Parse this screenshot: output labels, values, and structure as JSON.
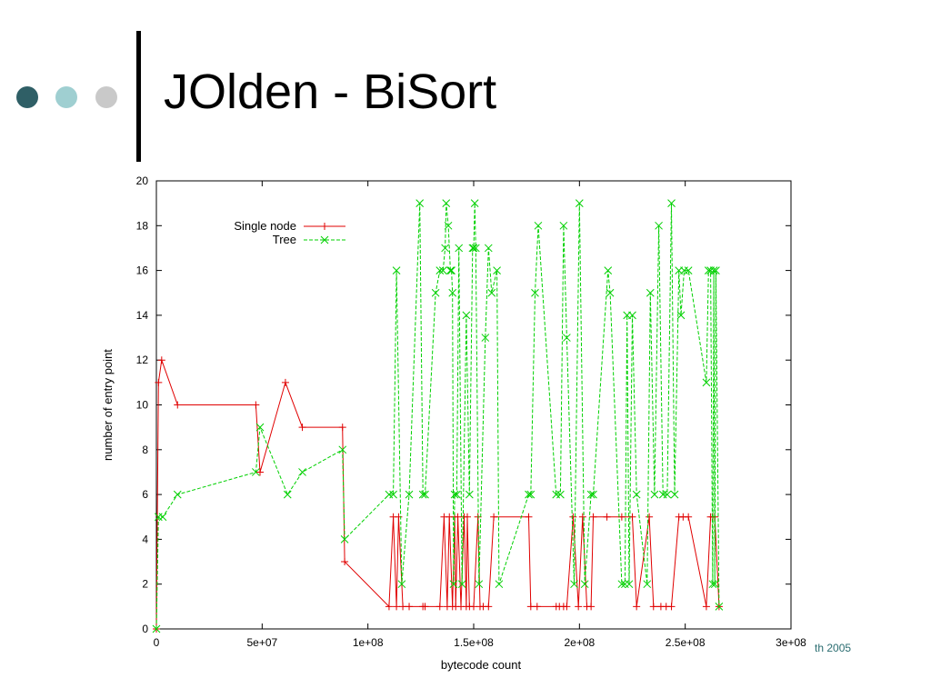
{
  "slide": {
    "title": "JOlden - BiSort",
    "footer": "th 2005",
    "bullet_colors": [
      "#2f5f66",
      "#9fcfd1",
      "#c9c9c9"
    ]
  },
  "chart_data": {
    "type": "line",
    "title": "",
    "xlabel": "bytecode count",
    "ylabel": "number of entry point",
    "xlim": [
      0,
      300000000
    ],
    "ylim": [
      0,
      20
    ],
    "x_ticks": [
      0,
      50000000,
      100000000,
      150000000,
      200000000,
      250000000,
      300000000
    ],
    "x_tick_labels": [
      "0",
      "5e+07",
      "1e+08",
      "1.5e+08",
      "2e+08",
      "2.5e+08",
      "3e+08"
    ],
    "y_ticks": [
      0,
      2,
      4,
      6,
      8,
      10,
      12,
      14,
      16,
      18,
      20
    ],
    "y_tick_labels": [
      "0",
      "2",
      "4",
      "6",
      "8",
      "10",
      "12",
      "14",
      "16",
      "18",
      "20"
    ],
    "grid": false,
    "legend_position": "top-left",
    "series": [
      {
        "name": "Single node",
        "color": "#e00000",
        "marker": "plus",
        "dash": "solid",
        "x": [
          0,
          1000000,
          2500000,
          10000000,
          47000000,
          49000000,
          61000000,
          69000000,
          88000000,
          89000000,
          110000000,
          112000000,
          113500000,
          114500000,
          116500000,
          119500000,
          126000000,
          127000000,
          134000000,
          136000000,
          137500000,
          138500000,
          140000000,
          141000000,
          141500000,
          142500000,
          144000000,
          145500000,
          146500000,
          147000000,
          148000000,
          150000000,
          152000000,
          153000000,
          154500000,
          157000000,
          159500000,
          176000000,
          177000000,
          180000000,
          189000000,
          190500000,
          192500000,
          194000000,
          197000000,
          199500000,
          201500000,
          203500000,
          205500000,
          206500000,
          213000000,
          220000000,
          225000000,
          227000000,
          233000000,
          235000000,
          238500000,
          241000000,
          243500000,
          247000000,
          249000000,
          251500000,
          260000000,
          262000000,
          263000000,
          264000000,
          266000000
        ],
        "y": [
          0,
          11,
          12,
          10,
          10,
          7,
          11,
          9,
          9,
          3,
          1,
          5,
          1,
          5,
          1,
          1,
          1,
          1,
          1,
          5,
          1,
          5,
          1,
          5,
          1,
          5,
          1,
          5,
          1,
          5,
          1,
          1,
          5,
          1,
          1,
          1,
          5,
          5,
          1,
          1,
          1,
          1,
          1,
          1,
          5,
          1,
          5,
          1,
          1,
          5,
          5,
          5,
          5,
          1,
          5,
          1,
          1,
          1,
          1,
          5,
          5,
          5,
          1,
          5,
          5,
          5,
          1
        ]
      },
      {
        "name": "Tree",
        "color": "#00d000",
        "marker": "cross",
        "dash": "dashed",
        "x": [
          0,
          1000000,
          3000000,
          10000000,
          47000000,
          49000000,
          62000000,
          69000000,
          88000000,
          89000000,
          110000000,
          112000000,
          113500000,
          116000000,
          119500000,
          124500000,
          126000000,
          127000000,
          132000000,
          134000000,
          135500000,
          136500000,
          137000000,
          138000000,
          139000000,
          139500000,
          140000000,
          140500000,
          141000000,
          142000000,
          143000000,
          144500000,
          146500000,
          148000000,
          149500000,
          150000000,
          150500000,
          151000000,
          152500000,
          155500000,
          157000000,
          158500000,
          161000000,
          162000000,
          176000000,
          177000000,
          179000000,
          180500000,
          189000000,
          191000000,
          192500000,
          194000000,
          197500000,
          200000000,
          202500000,
          205500000,
          206500000,
          213500000,
          214500000,
          220000000,
          221500000,
          222500000,
          223500000,
          225000000,
          227000000,
          232000000,
          233500000,
          235500000,
          237500000,
          239500000,
          241500000,
          243500000,
          245000000,
          247000000,
          248000000,
          249500000,
          251500000,
          260000000,
          261000000,
          262000000,
          263000000,
          263500000,
          264000000,
          264500000,
          266000000
        ],
        "y": [
          0,
          5,
          5,
          6,
          7,
          9,
          6,
          7,
          8,
          4,
          6,
          6,
          16,
          2,
          6,
          19,
          6,
          6,
          15,
          16,
          16,
          17,
          19,
          18,
          16,
          16,
          15,
          2,
          6,
          6,
          17,
          2,
          14,
          6,
          17,
          17,
          19,
          17,
          2,
          13,
          17,
          15,
          16,
          2,
          6,
          6,
          15,
          18,
          6,
          6,
          18,
          13,
          2,
          19,
          2,
          6,
          6,
          16,
          15,
          2,
          2,
          14,
          2,
          14,
          6,
          2,
          15,
          6,
          18,
          6,
          6,
          19,
          6,
          16,
          14,
          16,
          16,
          11,
          16,
          16,
          2,
          16,
          2,
          16,
          1
        ]
      }
    ]
  }
}
